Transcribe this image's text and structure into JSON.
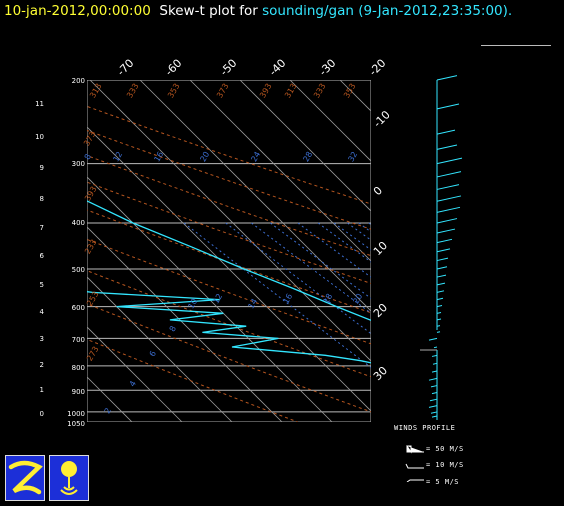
{
  "title": {
    "date": "10-jan-2012,00:00:00",
    "plot_prefix": "Skew-t plot for",
    "sounding": "sounding/gan (9-Jan-2012,23:35:00)."
  },
  "chart_data": {
    "type": "line",
    "title": "Skew-t plot for sounding/gan (9-Jan-2012,23:35:00).",
    "pressure_labels": [
      "200",
      "300",
      "400",
      "500",
      "600",
      "700",
      "800",
      "900",
      "1000",
      "1050"
    ],
    "height_km_labels": [
      "11",
      "10",
      "9",
      "8",
      "7",
      "6",
      "5",
      "4",
      "3",
      "2",
      "1",
      "0"
    ],
    "temp_top_labels": [
      "-70",
      "-60",
      "-50",
      "-40",
      "-30",
      "-20"
    ],
    "temp_side_labels": [
      "-10",
      "0",
      "10",
      "20",
      "30"
    ],
    "theta_labels": [
      "313",
      "333",
      "353",
      "373",
      "393",
      "233",
      "253",
      "273",
      "292"
    ],
    "theta_top_labels": [
      "313",
      "333",
      "353",
      "373",
      "393"
    ],
    "mixing_ratio_labels": [
      "8",
      "12",
      "16",
      "20",
      "24",
      "28",
      "32",
      "2",
      "4",
      "6",
      "8",
      "10",
      "12",
      "14",
      "16",
      "18",
      "20"
    ],
    "series": [
      {
        "color": "#33e6ff",
        "values": [
          [
            200,
            -61
          ],
          [
            220,
            -60
          ],
          [
            250,
            -55
          ],
          [
            280,
            -49
          ],
          [
            300,
            -44
          ],
          [
            350,
            -36
          ],
          [
            400,
            -30
          ],
          [
            450,
            -23
          ],
          [
            500,
            -17
          ],
          [
            550,
            -11
          ],
          [
            600,
            -6
          ],
          [
            650,
            -1
          ],
          [
            700,
            2
          ],
          [
            750,
            6
          ],
          [
            800,
            10
          ],
          [
            850,
            14
          ],
          [
            900,
            18
          ],
          [
            950,
            22
          ],
          [
            1000,
            24
          ],
          [
            1010,
            25
          ]
        ]
      },
      {
        "color": "#33e6ff",
        "values": [
          [
            200,
            -72
          ],
          [
            230,
            -78
          ],
          [
            260,
            -75
          ],
          [
            290,
            -72
          ],
          [
            310,
            -74
          ],
          [
            340,
            -65
          ],
          [
            370,
            -63
          ],
          [
            400,
            -52
          ],
          [
            420,
            -60
          ],
          [
            440,
            -55
          ],
          [
            460,
            -58
          ],
          [
            480,
            -50
          ],
          [
            500,
            -66
          ],
          [
            520,
            -55
          ],
          [
            540,
            -62
          ],
          [
            560,
            -52
          ],
          [
            580,
            -28
          ],
          [
            600,
            -50
          ],
          [
            620,
            -30
          ],
          [
            640,
            -42
          ],
          [
            660,
            -28
          ],
          [
            680,
            -38
          ],
          [
            700,
            -24
          ],
          [
            730,
            -35
          ],
          [
            760,
            -18
          ],
          [
            780,
            -12
          ],
          [
            800,
            -8
          ],
          [
            830,
            -5
          ],
          [
            860,
            2
          ],
          [
            880,
            -5
          ],
          [
            900,
            10
          ],
          [
            930,
            14
          ],
          [
            960,
            20
          ],
          [
            990,
            22
          ],
          [
            1010,
            22
          ]
        ]
      }
    ],
    "wind_profile": {
      "title": "WINDS PROFILE",
      "legend": [
        "= 50 M/S",
        "= 10 M/S",
        "= 5 M/S"
      ],
      "upper": [
        [
          200,
          20
        ],
        [
          230,
          22
        ],
        [
          260,
          18
        ],
        [
          280,
          20
        ],
        [
          300,
          25
        ],
        [
          320,
          24
        ],
        [
          340,
          22
        ],
        [
          360,
          24
        ],
        [
          380,
          23
        ],
        [
          400,
          20
        ],
        [
          420,
          18
        ],
        [
          440,
          15
        ],
        [
          460,
          13
        ],
        [
          480,
          11
        ],
        [
          500,
          10
        ],
        [
          520,
          9
        ],
        [
          540,
          8
        ],
        [
          560,
          7
        ],
        [
          580,
          6
        ],
        [
          600,
          5
        ],
        [
          620,
          4
        ],
        [
          640,
          4
        ],
        [
          660,
          3
        ],
        [
          680,
          3
        ]
      ],
      "lower": [
        [
          700,
          8
        ],
        [
          730,
          3
        ],
        [
          760,
          5
        ],
        [
          790,
          4
        ],
        [
          820,
          5
        ],
        [
          850,
          8
        ],
        [
          880,
          6
        ],
        [
          910,
          5
        ],
        [
          940,
          7
        ],
        [
          970,
          8
        ],
        [
          1000,
          6
        ],
        [
          1020,
          5
        ]
      ]
    }
  }
}
